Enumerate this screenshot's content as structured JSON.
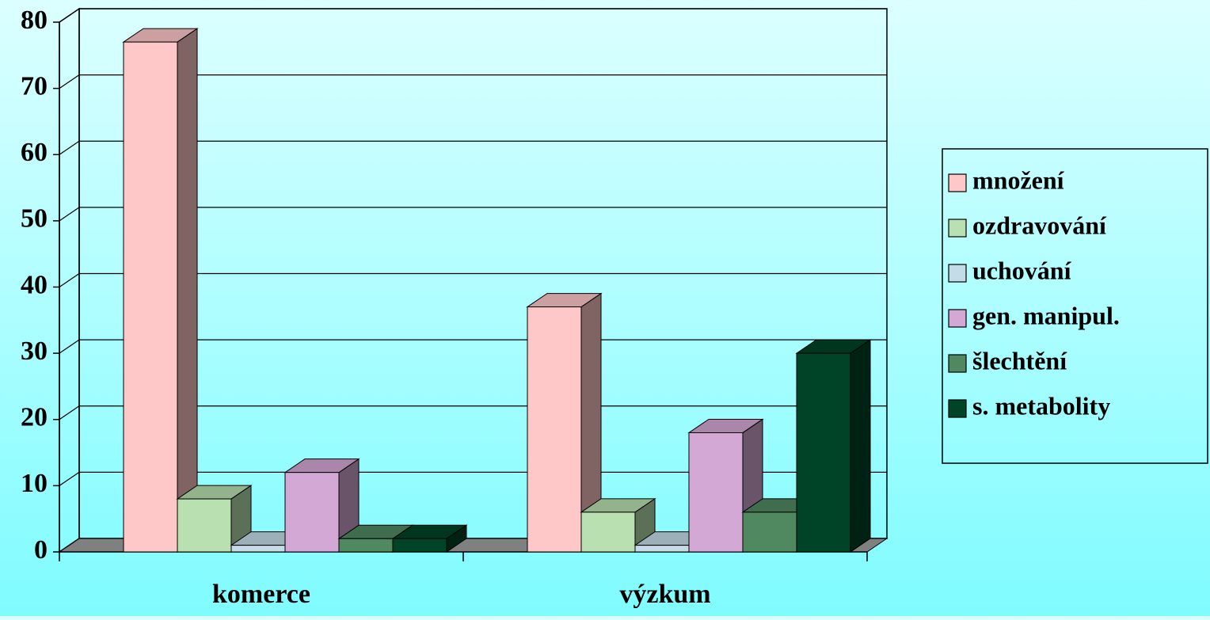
{
  "chart_data": {
    "type": "bar3d",
    "categories": [
      "komerce",
      "výzkum"
    ],
    "series": [
      {
        "name": "množení",
        "color": "#ffc8c8",
        "values": [
          77,
          37
        ]
      },
      {
        "name": "ozdravování",
        "color": "#b8e0b0",
        "values": [
          8,
          6
        ]
      },
      {
        "name": "uchování",
        "color": "#c4dce8",
        "values": [
          1,
          1
        ]
      },
      {
        "name": "gen. manipul.",
        "color": "#d4a8d4",
        "values": [
          12,
          18
        ]
      },
      {
        "name": "šlechtění",
        "color": "#508860",
        "values": [
          2,
          6
        ]
      },
      {
        "name": "s. metabolity",
        "color": "#004428",
        "values": [
          2,
          30
        ]
      }
    ],
    "ylim": [
      0,
      80
    ],
    "yticks": [
      0,
      10,
      20,
      30,
      40,
      50,
      60,
      70,
      80
    ],
    "grid": true,
    "legend": "right"
  }
}
